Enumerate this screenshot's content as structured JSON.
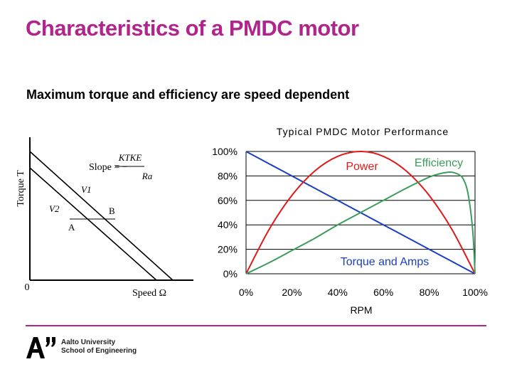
{
  "slide": {
    "title": "Characteristics of a PMDC motor",
    "subtitle": "Maximum torque and efficiency are speed dependent",
    "accent_color": "#b0258c"
  },
  "diagram": {
    "y_axis_label": "Torque T",
    "x_axis_label": "Speed Ω",
    "origin_label": "0",
    "slope_prefix": "Slope = −",
    "slope_numerator": "KTKE",
    "slope_denominator": "Ra",
    "line_labels": [
      "V1",
      "V2"
    ],
    "point_labels": [
      "B",
      "A"
    ]
  },
  "chart_data": {
    "type": "line",
    "title": "Typical PMDC Motor Performance",
    "xlabel": "RPM",
    "ylabel": "",
    "x_ticks": [
      "0%",
      "20%",
      "40%",
      "60%",
      "80%",
      "100%"
    ],
    "y_ticks": [
      "0%",
      "20%",
      "40%",
      "60%",
      "80%",
      "100%"
    ],
    "xlim": [
      0,
      100
    ],
    "ylim": [
      0,
      100
    ],
    "grid": true,
    "series": [
      {
        "name": "Torque and Amps",
        "color": "#1a3fc0",
        "x": [
          0,
          10,
          20,
          30,
          40,
          50,
          60,
          70,
          80,
          90,
          100
        ],
        "y": [
          100,
          90,
          80,
          70,
          60,
          50,
          40,
          30,
          20,
          10,
          0
        ]
      },
      {
        "name": "Power",
        "color": "#e01a1a",
        "x": [
          0,
          10,
          20,
          30,
          40,
          50,
          60,
          70,
          80,
          90,
          100
        ],
        "y": [
          0,
          36,
          64,
          84,
          96,
          100,
          96,
          84,
          64,
          36,
          0
        ]
      },
      {
        "name": "Efficiency",
        "color": "#3c9c5c",
        "x": [
          0,
          10,
          20,
          30,
          40,
          50,
          60,
          70,
          80,
          85,
          88,
          90,
          93,
          95,
          97,
          99,
          100
        ],
        "y": [
          0,
          9,
          19,
          29,
          40,
          50,
          60,
          70,
          79,
          82,
          83,
          83,
          81,
          77,
          65,
          35,
          0
        ]
      }
    ]
  },
  "footer": {
    "org_line1": "Aalto University",
    "org_line2": "School of Engineering"
  }
}
